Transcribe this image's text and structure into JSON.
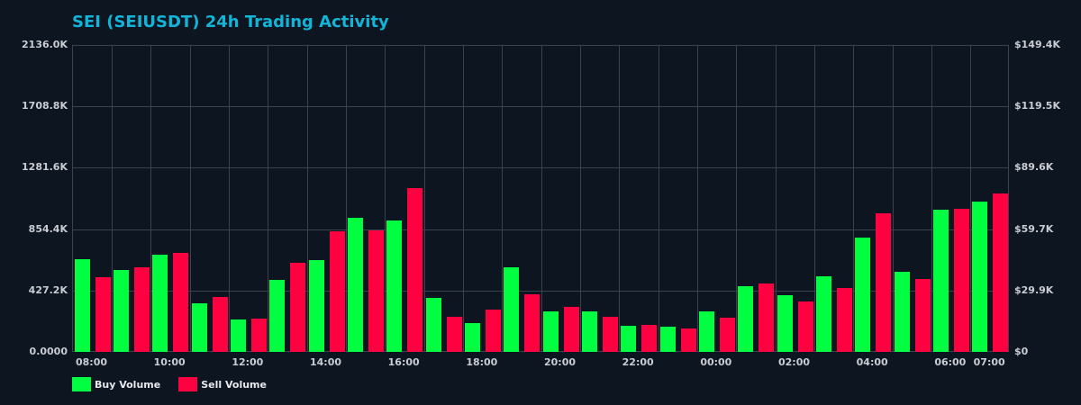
{
  "title": "SEI (SEIUSDT) 24h Trading Activity",
  "colors": {
    "background": "#0d1520",
    "title": "#12b5d8",
    "buy": "#00ff41",
    "sell": "#ff0040",
    "grid": "#3a4250",
    "axis_text": "#c9ccd2"
  },
  "axes": {
    "left_ticks": [
      "0.0000",
      "427.2K",
      "854.4K",
      "1281.6K",
      "1708.8K",
      "2136.0K"
    ],
    "right_ticks": [
      "$0",
      "$29.9K",
      "$59.7K",
      "$89.6K",
      "$119.5K",
      "$149.4K"
    ],
    "x_ticks": [
      {
        "label": "08:00",
        "index": 0
      },
      {
        "label": "10:00",
        "index": 2
      },
      {
        "label": "12:00",
        "index": 4
      },
      {
        "label": "14:00",
        "index": 6
      },
      {
        "label": "16:00",
        "index": 8
      },
      {
        "label": "18:00",
        "index": 10
      },
      {
        "label": "20:00",
        "index": 12
      },
      {
        "label": "22:00",
        "index": 14
      },
      {
        "label": "00:00",
        "index": 16
      },
      {
        "label": "02:00",
        "index": 18
      },
      {
        "label": "04:00",
        "index": 20
      },
      {
        "label": "06:00",
        "index": 22
      },
      {
        "label": "07:00",
        "index": 23
      }
    ]
  },
  "legend": {
    "buy_label": "Buy Volume",
    "sell_label": "Sell Volume"
  },
  "chart_data": {
    "type": "bar",
    "title": "SEI (SEIUSDT) 24h Trading Activity",
    "xlabel": "",
    "ylabel": "",
    "ylim": [
      0,
      2136.0
    ],
    "y_unit": "K",
    "y2lim": [
      0,
      149.4
    ],
    "y2_unit": "$K",
    "grid": true,
    "legend_position": "bottom-left",
    "categories": [
      "08:00",
      "09:00",
      "10:00",
      "11:00",
      "12:00",
      "13:00",
      "14:00",
      "15:00",
      "16:00",
      "17:00",
      "18:00",
      "19:00",
      "20:00",
      "21:00",
      "22:00",
      "23:00",
      "00:00",
      "01:00",
      "02:00",
      "03:00",
      "04:00",
      "05:00",
      "06:00",
      "07:00"
    ],
    "series": [
      {
        "name": "Buy Volume",
        "color": "#00ff41",
        "values": [
          643,
          568,
          674,
          336,
          223,
          499,
          637,
          932,
          913,
          373,
          198,
          587,
          285,
          285,
          179,
          173,
          279,
          455,
          392,
          524,
          794,
          555,
          988,
          1044
        ]
      },
      {
        "name": "Sell Volume",
        "color": "#ff0040",
        "values": [
          518,
          587,
          687,
          380,
          229,
          618,
          837,
          844,
          1139,
          242,
          292,
          398,
          311,
          242,
          191,
          160,
          235,
          474,
          348,
          442,
          963,
          505,
          994,
          1101
        ]
      }
    ]
  }
}
